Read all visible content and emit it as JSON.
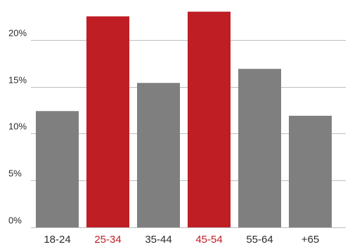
{
  "chart_data": {
    "type": "bar",
    "title": "",
    "xlabel": "",
    "ylabel": "",
    "categories": [
      "18-24",
      "25-34",
      "35-44",
      "45-54",
      "55-64",
      "+65"
    ],
    "values": [
      12.4,
      22.5,
      15.4,
      23.0,
      16.9,
      11.9
    ],
    "highlighted": [
      false,
      true,
      false,
      true,
      false,
      false
    ],
    "ylim": [
      0,
      22
    ],
    "y_ticks": [
      0,
      5,
      10,
      15,
      20
    ],
    "y_tick_labels": [
      "0%",
      "5%",
      "10%",
      "15%",
      "20%"
    ],
    "grid": true,
    "colors": {
      "bar": "#7f7f7f",
      "highlight": "#bf1e25",
      "label": "#2b2b2b",
      "highlight_label": "#bf1e25",
      "grid": "#bdbdbd"
    }
  }
}
